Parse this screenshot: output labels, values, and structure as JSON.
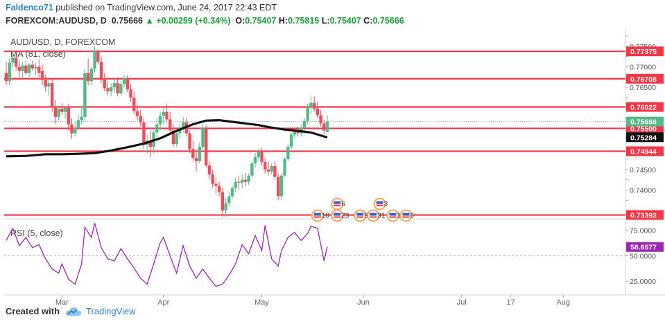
{
  "header": {
    "user": "Faldenco71",
    "published": "published on TradingView.com, June 24, 2017 22:43 EDT",
    "symbol": "FOREXCOM:AUDUSD, D",
    "last": "0.75666",
    "change": "+0.00259 (+0.34%)",
    "o_label": "O:",
    "o": "0.75407",
    "h_label": "H:",
    "h": "0.75815",
    "l_label": "L:",
    "l": "0.75407",
    "c_label": "C:",
    "c": "0.75666"
  },
  "footer": {
    "created": "Created with",
    "brand": "TradingView"
  },
  "colors": {
    "up": "#53b987",
    "down": "#eb4d5c",
    "level": "#f23645",
    "ma": "#111111",
    "rsi": "#9c27b0",
    "axis_badge_bg": "#eeeeee"
  },
  "chart_data": [
    {
      "type": "candlestick",
      "title": "AUD/USD, D, FOREXCOM",
      "indicator_label": "MA (81, close)",
      "ylim": [
        0.733,
        0.7785
      ],
      "y_ticks": [
        0.7375,
        0.74,
        0.7425,
        0.745,
        0.7475,
        0.75,
        0.7525,
        0.755,
        0.7575,
        0.76,
        0.7625,
        0.765,
        0.7675,
        0.77,
        0.7725,
        0.775,
        0.7775
      ],
      "y_tick_labels": [
        "",
        "0.74000",
        "",
        "0.74500",
        "",
        "",
        "",
        "",
        "",
        "",
        "",
        "0.76500",
        "",
        "0.77000",
        "",
        "0.77500",
        ""
      ],
      "x_labels": [
        "Mar",
        "Apr",
        "May",
        "Jun",
        "Jul",
        "17",
        "Aug"
      ],
      "x_label_days": [
        0,
        31,
        61,
        92,
        122,
        137,
        153
      ],
      "first_day": -17,
      "last_day": 172,
      "levels": [
        "0.77375",
        "0.76708",
        "0.76022",
        "0.75500",
        "0.74944",
        "0.73392"
      ],
      "price_badges": [
        {
          "label": "0.75666",
          "kind": "last"
        },
        {
          "label": "0.75284",
          "kind": "ma"
        }
      ],
      "candles": [
        [
          -17,
          0.7685,
          0.7712,
          0.7655,
          0.7665
        ],
        [
          -16,
          0.7665,
          0.772,
          0.7655,
          0.771
        ],
        [
          -15,
          0.771,
          0.7738,
          0.7698,
          0.7722
        ],
        [
          -14,
          0.7722,
          0.7735,
          0.769,
          0.77
        ],
        [
          -13,
          0.77,
          0.7715,
          0.7675,
          0.769
        ],
        [
          -12,
          0.769,
          0.7712,
          0.7668,
          0.7703
        ],
        [
          -11,
          0.7703,
          0.7715,
          0.768,
          0.7685
        ],
        [
          -10,
          0.7685,
          0.771,
          0.7675,
          0.7705
        ],
        [
          -9,
          0.7705,
          0.7715,
          0.769,
          0.7696
        ],
        [
          -8,
          0.7696,
          0.771,
          0.768,
          0.77
        ],
        [
          -7,
          0.77,
          0.7718,
          0.7675,
          0.7685
        ],
        [
          -6,
          0.769,
          0.7705,
          0.7655,
          0.7668
        ],
        [
          -5,
          0.7668,
          0.768,
          0.764,
          0.7652
        ],
        [
          -4,
          0.7652,
          0.767,
          0.763,
          0.766
        ],
        [
          -3,
          0.766,
          0.767,
          0.759,
          0.7602
        ],
        [
          -2,
          0.7602,
          0.762,
          0.756,
          0.7578
        ],
        [
          -1,
          0.7578,
          0.7605,
          0.757,
          0.7598
        ],
        [
          0,
          0.7598,
          0.7612,
          0.7582,
          0.759
        ],
        [
          1,
          0.759,
          0.7605,
          0.7575,
          0.76
        ],
        [
          2,
          0.76,
          0.761,
          0.7545,
          0.756
        ],
        [
          3,
          0.756,
          0.7575,
          0.7525,
          0.7538
        ],
        [
          4,
          0.7538,
          0.7565,
          0.753,
          0.7552
        ],
        [
          5,
          0.7552,
          0.7585,
          0.7545,
          0.757
        ],
        [
          6,
          0.757,
          0.7605,
          0.756,
          0.7578
        ],
        [
          7,
          0.7578,
          0.7695,
          0.757,
          0.7685
        ],
        [
          8,
          0.7685,
          0.772,
          0.7655,
          0.7665
        ],
        [
          9,
          0.7665,
          0.77,
          0.7655,
          0.7695
        ],
        [
          10,
          0.7695,
          0.775,
          0.7685,
          0.774
        ],
        [
          11,
          0.774,
          0.7742,
          0.7705,
          0.7712
        ],
        [
          12,
          0.7712,
          0.7725,
          0.766,
          0.7672
        ],
        [
          13,
          0.7672,
          0.7685,
          0.764,
          0.7648
        ],
        [
          14,
          0.7648,
          0.7665,
          0.763,
          0.764
        ],
        [
          15,
          0.764,
          0.766,
          0.7628,
          0.765
        ],
        [
          16,
          0.765,
          0.7672,
          0.7638,
          0.766
        ],
        [
          17,
          0.766,
          0.7672,
          0.7628,
          0.7635
        ],
        [
          18,
          0.7635,
          0.7665,
          0.763,
          0.7658
        ],
        [
          19,
          0.7658,
          0.768,
          0.765,
          0.7672
        ],
        [
          20,
          0.7672,
          0.768,
          0.7638,
          0.7645
        ],
        [
          21,
          0.7645,
          0.7658,
          0.7615,
          0.7625
        ],
        [
          22,
          0.7625,
          0.764,
          0.7585,
          0.7592
        ],
        [
          23,
          0.7592,
          0.7608,
          0.757,
          0.758
        ],
        [
          24,
          0.758,
          0.7595,
          0.7555,
          0.7565
        ],
        [
          25,
          0.7565,
          0.7575,
          0.75,
          0.751
        ],
        [
          26,
          0.751,
          0.7535,
          0.749,
          0.752
        ],
        [
          27,
          0.752,
          0.7545,
          0.748,
          0.7505
        ],
        [
          28,
          0.7505,
          0.7545,
          0.749,
          0.754
        ],
        [
          29,
          0.754,
          0.7575,
          0.7525,
          0.756
        ],
        [
          30,
          0.756,
          0.759,
          0.7545,
          0.758
        ],
        [
          31,
          0.758,
          0.76,
          0.756,
          0.759
        ],
        [
          32,
          0.759,
          0.761,
          0.7565,
          0.7572
        ],
        [
          33,
          0.7572,
          0.759,
          0.7535,
          0.7545
        ],
        [
          34,
          0.7545,
          0.756,
          0.7505,
          0.7512
        ],
        [
          35,
          0.7512,
          0.7545,
          0.7505,
          0.7538
        ],
        [
          36,
          0.7538,
          0.756,
          0.7525,
          0.7552
        ],
        [
          37,
          0.7552,
          0.7578,
          0.754,
          0.7565
        ],
        [
          38,
          0.7565,
          0.7575,
          0.753,
          0.7538
        ],
        [
          39,
          0.7538,
          0.7545,
          0.749,
          0.75
        ],
        [
          40,
          0.75,
          0.752,
          0.747,
          0.7478
        ],
        [
          41,
          0.7478,
          0.7495,
          0.7445,
          0.747
        ],
        [
          42,
          0.747,
          0.7515,
          0.7465,
          0.7505
        ],
        [
          43,
          0.7505,
          0.756,
          0.75,
          0.7552
        ],
        [
          44,
          0.7552,
          0.7558,
          0.7455,
          0.746
        ],
        [
          45,
          0.746,
          0.747,
          0.7425,
          0.7438
        ],
        [
          46,
          0.7438,
          0.745,
          0.7405,
          0.7415
        ],
        [
          47,
          0.7415,
          0.7432,
          0.739,
          0.741
        ],
        [
          48,
          0.741,
          0.742,
          0.7385,
          0.7395
        ],
        [
          49,
          0.7395,
          0.7405,
          0.7335,
          0.735
        ],
        [
          50,
          0.735,
          0.738,
          0.7335,
          0.7368
        ],
        [
          51,
          0.7368,
          0.7395,
          0.736,
          0.7385
        ],
        [
          52,
          0.7385,
          0.741,
          0.7378,
          0.7405
        ],
        [
          53,
          0.7405,
          0.743,
          0.7395,
          0.742
        ],
        [
          54,
          0.742,
          0.7435,
          0.74,
          0.7418
        ],
        [
          55,
          0.7418,
          0.7438,
          0.7405,
          0.7425
        ],
        [
          56,
          0.7425,
          0.7442,
          0.741,
          0.742
        ],
        [
          57,
          0.742,
          0.744,
          0.7412,
          0.7435
        ],
        [
          58,
          0.7435,
          0.747,
          0.743,
          0.7465
        ],
        [
          59,
          0.7465,
          0.749,
          0.7455,
          0.748
        ],
        [
          60,
          0.748,
          0.75,
          0.747,
          0.7492
        ],
        [
          61,
          0.7492,
          0.7502,
          0.746,
          0.7468
        ],
        [
          62,
          0.7468,
          0.7478,
          0.744,
          0.745
        ],
        [
          63,
          0.745,
          0.747,
          0.7435,
          0.7445
        ],
        [
          64,
          0.7445,
          0.7465,
          0.7438,
          0.7458
        ],
        [
          65,
          0.7458,
          0.747,
          0.7425,
          0.7432
        ],
        [
          66,
          0.7432,
          0.744,
          0.7375,
          0.7385
        ],
        [
          67,
          0.7385,
          0.744,
          0.7375,
          0.7435
        ],
        [
          68,
          0.7435,
          0.748,
          0.743,
          0.7475
        ],
        [
          69,
          0.7475,
          0.7512,
          0.747,
          0.7505
        ],
        [
          70,
          0.7505,
          0.754,
          0.75,
          0.7535
        ],
        [
          71,
          0.7535,
          0.755,
          0.7525,
          0.7545
        ],
        [
          72,
          0.7545,
          0.7555,
          0.753,
          0.7538
        ],
        [
          73,
          0.7538,
          0.756,
          0.753,
          0.7552
        ],
        [
          74,
          0.7552,
          0.7575,
          0.754,
          0.7568
        ],
        [
          75,
          0.7568,
          0.761,
          0.756,
          0.76
        ],
        [
          76,
          0.76,
          0.763,
          0.7585,
          0.7612
        ],
        [
          77,
          0.7612,
          0.7628,
          0.759,
          0.7598
        ],
        [
          78,
          0.7598,
          0.7615,
          0.7575,
          0.7582
        ],
        [
          79,
          0.7582,
          0.7595,
          0.7555,
          0.7562
        ],
        [
          80,
          0.7562,
          0.757,
          0.7535,
          0.7545
        ],
        [
          81,
          0.7541,
          0.7582,
          0.7541,
          0.7567
        ]
      ],
      "ma_series": [
        [
          -17,
          0.7482
        ],
        [
          -11,
          0.7483
        ],
        [
          -5,
          0.7487
        ],
        [
          0,
          0.7487
        ],
        [
          5,
          0.7488
        ],
        [
          10,
          0.749
        ],
        [
          15,
          0.7496
        ],
        [
          20,
          0.7504
        ],
        [
          25,
          0.7513
        ],
        [
          30,
          0.7526
        ],
        [
          35,
          0.7544
        ],
        [
          40,
          0.756
        ],
        [
          44,
          0.7569
        ],
        [
          48,
          0.757
        ],
        [
          52,
          0.7566
        ],
        [
          56,
          0.7562
        ],
        [
          60,
          0.7558
        ],
        [
          64,
          0.7552
        ],
        [
          68,
          0.7547
        ],
        [
          72,
          0.7544
        ],
        [
          76,
          0.754
        ],
        [
          81,
          0.7528
        ]
      ],
      "event_icons": [
        {
          "day": 78,
          "price": 0.73375,
          "label": "10"
        },
        {
          "day": 84,
          "price": 0.73375,
          "label": "23"
        },
        {
          "day": 84,
          "price": 0.7366,
          "label": "6"
        },
        {
          "day": 91,
          "price": 0.73375,
          "label": "9"
        },
        {
          "day": 95,
          "price": 0.73375,
          "label": "31"
        },
        {
          "day": 101,
          "price": 0.73375,
          "label": "12"
        },
        {
          "day": 97,
          "price": 0.7366,
          "label": "3"
        },
        {
          "day": 105,
          "price": 0.73375,
          "label": "6"
        }
      ]
    },
    {
      "type": "line",
      "title": "RSI (5, close)",
      "ylim": [
        17,
        85
      ],
      "y_ticks": [
        25,
        50,
        75
      ],
      "y_tick_labels": [
        "25.0000",
        "50.0000",
        "75.0000"
      ],
      "value_badge": "58.6577",
      "values": [
        [
          -17,
          65
        ],
        [
          -15,
          77
        ],
        [
          -13,
          60
        ],
        [
          -11,
          68
        ],
        [
          -9,
          58
        ],
        [
          -7,
          61
        ],
        [
          -5,
          47
        ],
        [
          -3,
          37
        ],
        [
          -1,
          33
        ],
        [
          0,
          42
        ],
        [
          2,
          27
        ],
        [
          4,
          22
        ],
        [
          6,
          42
        ],
        [
          7,
          78
        ],
        [
          9,
          68
        ],
        [
          10,
          82
        ],
        [
          12,
          58
        ],
        [
          14,
          47
        ],
        [
          16,
          45
        ],
        [
          18,
          57
        ],
        [
          20,
          47
        ],
        [
          22,
          38
        ],
        [
          24,
          28
        ],
        [
          26,
          22
        ],
        [
          28,
          42
        ],
        [
          30,
          63
        ],
        [
          31,
          68
        ],
        [
          33,
          50
        ],
        [
          35,
          33
        ],
        [
          37,
          60
        ],
        [
          39,
          40
        ],
        [
          41,
          28
        ],
        [
          43,
          37
        ],
        [
          45,
          28
        ],
        [
          47,
          20
        ],
        [
          49,
          22
        ],
        [
          51,
          31
        ],
        [
          53,
          42
        ],
        [
          55,
          61
        ],
        [
          57,
          52
        ],
        [
          59,
          70
        ],
        [
          61,
          55
        ],
        [
          62,
          80
        ],
        [
          64,
          47
        ],
        [
          66,
          40
        ],
        [
          67,
          55
        ],
        [
          69,
          68
        ],
        [
          71,
          73
        ],
        [
          73,
          65
        ],
        [
          75,
          72
        ],
        [
          76,
          79
        ],
        [
          78,
          77
        ],
        [
          80,
          45
        ],
        [
          81,
          59
        ]
      ]
    }
  ]
}
